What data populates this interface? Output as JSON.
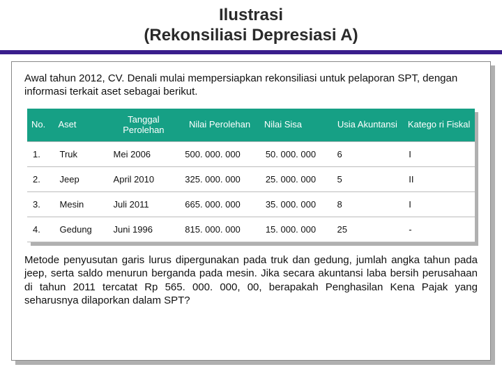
{
  "title": {
    "line1": "Ilustrasi",
    "line2": "(Rekonsiliasi Depresiasi A)"
  },
  "colors": {
    "accent_bar": "#3a1e8c",
    "header_bg": "#16a085",
    "shadow": "#b0b0b0",
    "border": "#888888",
    "row_border": "#bbbbbb",
    "text": "#111111",
    "title_text": "#2a2a2a"
  },
  "intro": "Awal tahun 2012, CV. Denali mulai mempersiapkan rekonsiliasi untuk pelaporan SPT, dengan informasi terkait aset sebagai berikut.",
  "table": {
    "columns": [
      {
        "label": "No.",
        "width": "6%",
        "align": "left"
      },
      {
        "label": "Aset",
        "width": "12%",
        "align": "left"
      },
      {
        "label": "Tanggal Perolehan",
        "width": "16%",
        "align": "center"
      },
      {
        "label": "Nilai Perolehan",
        "width": "18%",
        "align": "center"
      },
      {
        "label": "Nilai Sisa",
        "width": "16%",
        "align": "left"
      },
      {
        "label": "Usia Akuntansi",
        "width": "16%",
        "align": "center"
      },
      {
        "label": "Katego ri Fiskal",
        "width": "16%",
        "align": "center"
      }
    ],
    "rows": [
      [
        "1.",
        "Truk",
        "Mei 2006",
        "500. 000. 000",
        "50. 000. 000",
        "6",
        "I"
      ],
      [
        "2.",
        "Jeep",
        "April 2010",
        "325. 000. 000",
        "25. 000. 000",
        "5",
        "II"
      ],
      [
        "3.",
        "Mesin",
        "Juli 2011",
        "665. 000. 000",
        "35. 000. 000",
        "8",
        "I"
      ],
      [
        "4.",
        "Gedung",
        "Juni 1996",
        "815. 000. 000",
        "15. 000. 000",
        "25",
        "-"
      ]
    ]
  },
  "outro": "Metode penyusutan garis lurus dipergunakan pada truk dan gedung, jumlah angka tahun pada jeep, serta saldo menurun berganda pada mesin. Jika secara akuntansi laba bersih perusahaan di tahun 2011 tercatat Rp 565. 000. 000, 00, berapakah Penghasilan Kena Pajak yang seharusnya dilaporkan dalam SPT?"
}
